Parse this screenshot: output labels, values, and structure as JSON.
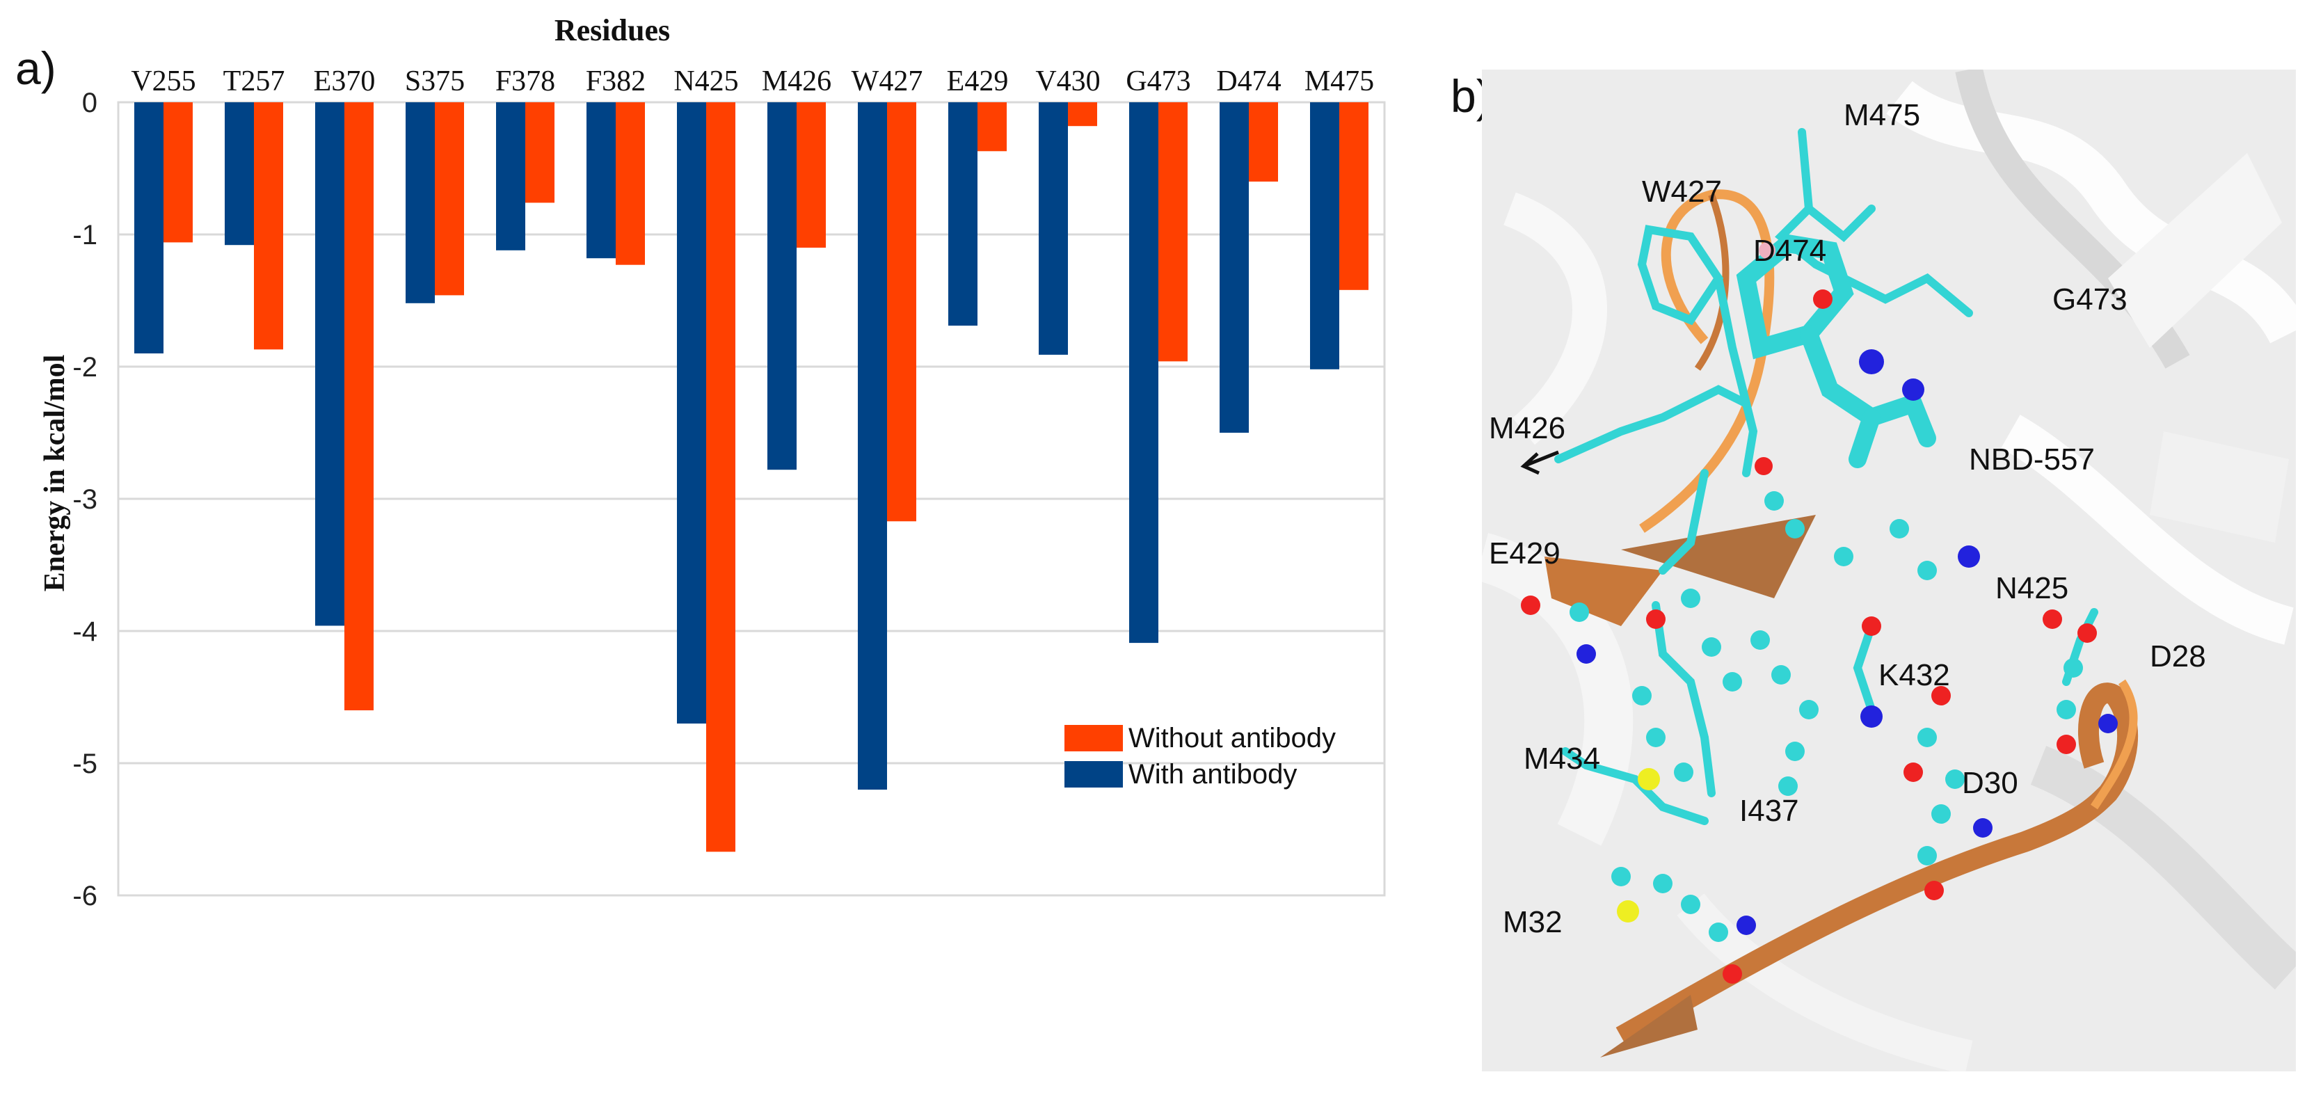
{
  "panel_a_label": "a)",
  "panel_b_label": "b)",
  "chart_data": {
    "type": "bar",
    "title": "Residues",
    "xlabel": "Residues",
    "ylabel": "Energy in kcal/mol",
    "ylim": [
      -6,
      0
    ],
    "yticks": [
      "0",
      "-1",
      "-2",
      "-3",
      "-4",
      "-5",
      "-6"
    ],
    "grid": true,
    "legend_position": "bottom-right",
    "categories": [
      "V255",
      "T257",
      "E370",
      "S375",
      "F378",
      "F382",
      "N425",
      "M426",
      "W427",
      "E429",
      "V430",
      "G473",
      "D474",
      "M475"
    ],
    "series": [
      {
        "name": "With antibody",
        "color": "#004386",
        "values": [
          -1.9,
          -1.08,
          -3.96,
          -1.52,
          -1.12,
          -1.18,
          -4.7,
          -2.78,
          -5.2,
          -1.69,
          -1.91,
          -4.09,
          -2.5,
          -2.02
        ]
      },
      {
        "name": "Without antibody",
        "color": "#ff4000",
        "values": [
          -1.06,
          -1.87,
          -4.6,
          -1.46,
          -0.76,
          -1.23,
          -5.67,
          -1.1,
          -3.17,
          -0.37,
          -0.18,
          -1.96,
          -0.6,
          -1.42
        ]
      }
    ],
    "legend": [
      "Without antibody",
      "With antibody"
    ]
  },
  "structure_labels": [
    "M475",
    "W427",
    "D474",
    "G473",
    "M426",
    "NBD-557",
    "E429",
    "N425",
    "D28",
    "K432",
    "M434",
    "D30",
    "I437",
    "M32"
  ],
  "colors": {
    "carbon": "#33d4d4",
    "oxygen": "#ee2222",
    "nitrogen": "#2222dd",
    "sulfur": "#eeee22",
    "ribbon": "#c8783a",
    "ribbon_light": "#f0a050",
    "protein_bg": "#e2e2e2"
  }
}
